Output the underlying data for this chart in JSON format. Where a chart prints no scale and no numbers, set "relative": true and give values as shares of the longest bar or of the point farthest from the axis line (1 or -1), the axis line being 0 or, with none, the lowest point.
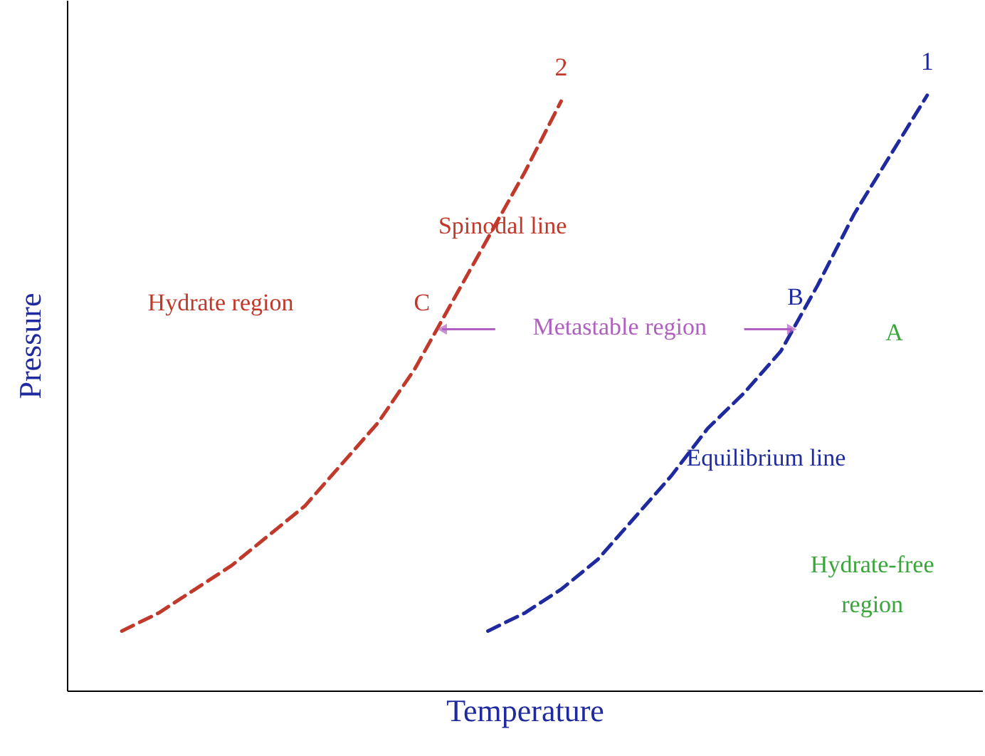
{
  "chart_data": {
    "type": "line",
    "relative": true,
    "xlabel": "Temperature",
    "ylabel": "Pressure",
    "legend": false,
    "line_style": "dashed",
    "marker": "none",
    "categories": [
      null,
      null,
      null,
      null,
      null,
      null,
      null,
      null,
      null,
      null,
      null,
      null,
      null,
      null,
      null,
      null,
      null,
      null,
      null,
      null,
      null,
      null,
      null
    ],
    "series": [
      {
        "name": "2",
        "color": "#c0392b",
        "values": [
          0.1,
          0.13,
          0.17,
          0.21,
          0.26,
          0.31,
          0.38,
          0.45,
          0.54,
          0.65,
          0.76,
          0.87,
          0.99,
          null,
          null,
          null,
          null,
          null,
          null,
          null,
          null,
          null,
          null
        ]
      },
      {
        "name": "1",
        "color": "#1f2a9f",
        "values": [
          null,
          null,
          null,
          null,
          null,
          null,
          null,
          null,
          null,
          null,
          0.1,
          0.13,
          0.17,
          0.22,
          0.29,
          0.36,
          0.44,
          0.5,
          0.57,
          0.68,
          0.8,
          0.9,
          1.0
        ]
      }
    ],
    "annotations": [
      "Spinodal line",
      "Hydrate region",
      "C",
      "Metastable region",
      "B",
      "A",
      "Equilibrium line",
      "Hydrate-free region"
    ]
  }
}
